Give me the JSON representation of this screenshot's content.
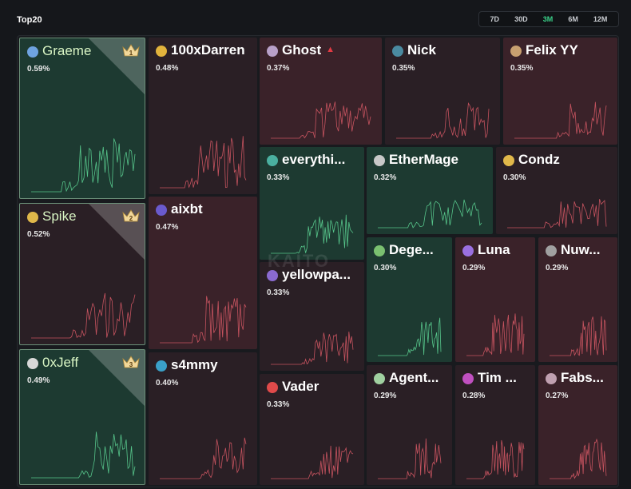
{
  "header": {
    "title": "Top20"
  },
  "range_tabs": [
    {
      "label": "7D",
      "active": false
    },
    {
      "label": "30D",
      "active": false
    },
    {
      "label": "3M",
      "active": true
    },
    {
      "label": "6M",
      "active": false
    },
    {
      "label": "12M",
      "active": false
    }
  ],
  "watermark": "KAITO",
  "accounts": [
    {
      "rank": 1,
      "name": "Graeme",
      "pct": "0.59%",
      "color": "green",
      "crown": "1",
      "avatar_color": "#6fa3e0"
    },
    {
      "rank": 2,
      "name": "Spike",
      "pct": "0.52%",
      "color": "dark",
      "crown": "2",
      "avatar_color": "#e0b84a"
    },
    {
      "rank": 3,
      "name": "0xJeff",
      "pct": "0.49%",
      "color": "green",
      "crown": "3",
      "avatar_color": "#d8d8d8"
    },
    {
      "rank": 4,
      "name": "100xDarren",
      "pct": "0.48%",
      "color": "dark",
      "avatar_color": "#e2b33c"
    },
    {
      "rank": 5,
      "name": "aixbt",
      "pct": "0.47%",
      "color": "red",
      "avatar_color": "#6a5acd"
    },
    {
      "rank": 6,
      "name": "s4mmy",
      "pct": "0.40%",
      "color": "dark",
      "avatar_color": "#3aa0c8"
    },
    {
      "rank": 7,
      "name": "Ghost",
      "pct": "0.37%",
      "color": "red",
      "avatar_color": "#b8a0c8",
      "trend_up": true
    },
    {
      "rank": 8,
      "name": "Nick",
      "pct": "0.35%",
      "color": "dark",
      "avatar_color": "#4a8aa0"
    },
    {
      "rank": 9,
      "name": "Felix YY",
      "pct": "0.35%",
      "color": "red",
      "avatar_color": "#c8a070"
    },
    {
      "rank": 10,
      "name": "everythi...",
      "pct": "0.33%",
      "color": "green",
      "avatar_color": "#4ab0a0"
    },
    {
      "rank": 11,
      "name": "yellowpa...",
      "pct": "0.33%",
      "color": "dark",
      "avatar_color": "#8a6ad0"
    },
    {
      "rank": 12,
      "name": "Vader",
      "pct": "0.33%",
      "color": "dark",
      "avatar_color": "#e04a4a"
    },
    {
      "rank": 13,
      "name": "EtherMage",
      "pct": "0.32%",
      "color": "green",
      "avatar_color": "#c8c8c8"
    },
    {
      "rank": 14,
      "name": "Condz",
      "pct": "0.30%",
      "color": "dark",
      "avatar_color": "#e0b84a"
    },
    {
      "rank": 15,
      "name": "Dege...",
      "pct": "0.30%",
      "color": "green",
      "avatar_color": "#7ac070"
    },
    {
      "rank": 16,
      "name": "Luna",
      "pct": "0.29%",
      "color": "red",
      "avatar_color": "#9a70e0"
    },
    {
      "rank": 17,
      "name": "Nuw...",
      "pct": "0.29%",
      "color": "red",
      "avatar_color": "#a0a0a0"
    },
    {
      "rank": 18,
      "name": "Agent...",
      "pct": "0.29%",
      "color": "dark",
      "avatar_color": "#a0d0a0"
    },
    {
      "rank": 19,
      "name": "Tim ...",
      "pct": "0.28%",
      "color": "dark",
      "avatar_color": "#c050c0"
    },
    {
      "rank": 20,
      "name": "Fabs...",
      "pct": "0.27%",
      "color": "red",
      "avatar_color": "#c0a0b0"
    }
  ],
  "colors": {
    "green_accent": "#3bd28a",
    "green_line": "#56c48a",
    "red_line": "#c5535f",
    "trend_up": "#e23b44"
  }
}
